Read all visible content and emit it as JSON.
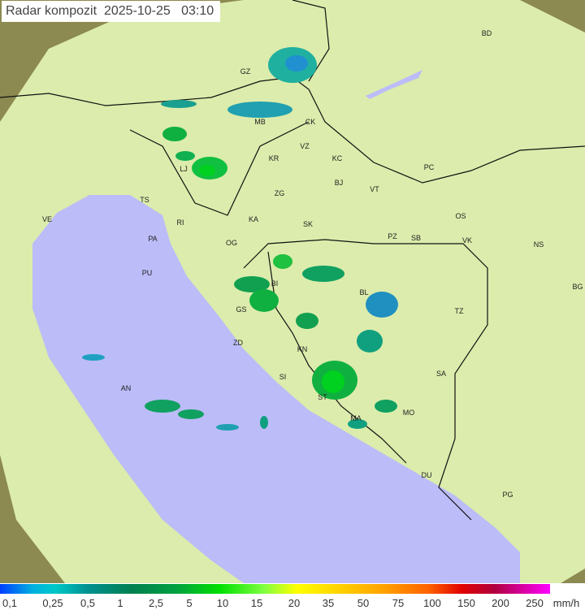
{
  "title": {
    "label": "Radar kompozit",
    "date": "2025-10-25",
    "time": "03:10"
  },
  "colors": {
    "sea": "#bcbcf8",
    "coverage": "#d8eaa8",
    "terrain": "#8a8a4a"
  },
  "legend": {
    "unit": "mm/h",
    "ticks": [
      "0,1",
      "0,25",
      "0,5",
      "1",
      "2,5",
      "5",
      "10",
      "15",
      "20",
      "35",
      "50",
      "75",
      "100",
      "150",
      "200",
      "250"
    ]
  },
  "cities": [
    {
      "code": "BD"
    },
    {
      "code": "GZ"
    },
    {
      "code": "MB"
    },
    {
      "code": "CK"
    },
    {
      "code": "VZ"
    },
    {
      "code": "KR"
    },
    {
      "code": "KC"
    },
    {
      "code": "LJ"
    },
    {
      "code": "ZG"
    },
    {
      "code": "BJ"
    },
    {
      "code": "VT"
    },
    {
      "code": "PC"
    },
    {
      "code": "TS"
    },
    {
      "code": "VE"
    },
    {
      "code": "RI"
    },
    {
      "code": "KA"
    },
    {
      "code": "SK"
    },
    {
      "code": "OS"
    },
    {
      "code": "PA"
    },
    {
      "code": "OG"
    },
    {
      "code": "PZ"
    },
    {
      "code": "SB"
    },
    {
      "code": "VK"
    },
    {
      "code": "NS"
    },
    {
      "code": "PU"
    },
    {
      "code": "BI"
    },
    {
      "code": "BL"
    },
    {
      "code": "BG"
    },
    {
      "code": "GS"
    },
    {
      "code": "TZ"
    },
    {
      "code": "ZD"
    },
    {
      "code": "KN"
    },
    {
      "code": "SA"
    },
    {
      "code": "AN"
    },
    {
      "code": "SI"
    },
    {
      "code": "ST"
    },
    {
      "code": "MO"
    },
    {
      "code": "MA"
    },
    {
      "code": "DU"
    },
    {
      "code": "PG"
    }
  ]
}
